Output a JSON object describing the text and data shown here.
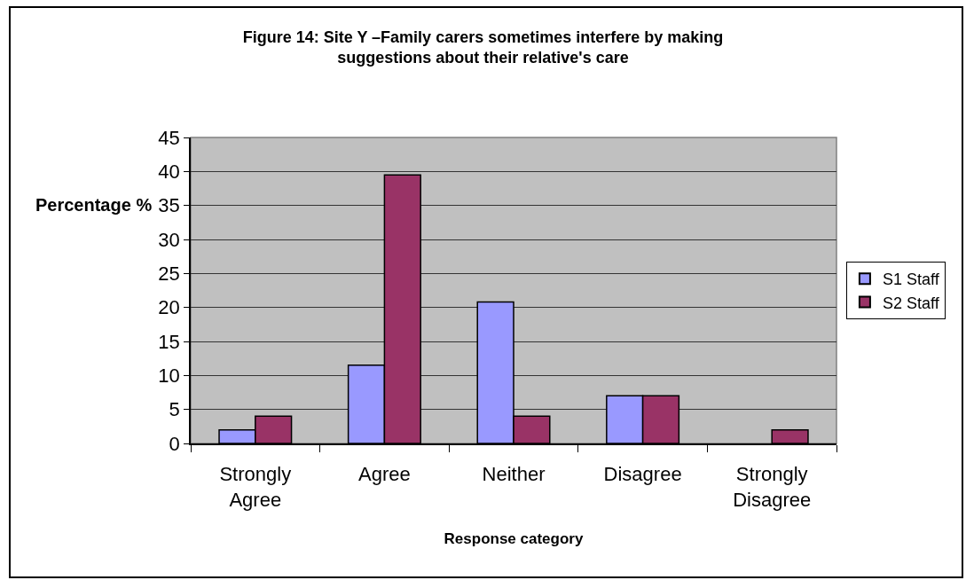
{
  "chart_data": {
    "type": "bar",
    "title": "Figure 14: Site Y –Family carers sometimes interfere by making suggestions about their relative's care",
    "xlabel": "Response category",
    "ylabel": "Percentage %",
    "categories": [
      "Strongly Agree",
      "Agree",
      "Neither",
      "Disagree",
      "Strongly Disagree"
    ],
    "series": [
      {
        "name": "S1 Staff",
        "color": "#9999ff",
        "values": [
          2,
          11.5,
          20.8,
          7,
          null
        ]
      },
      {
        "name": "S2 Staff",
        "color": "#993366",
        "values": [
          4,
          39.5,
          4,
          7,
          2
        ]
      }
    ],
    "ylim": [
      0,
      45
    ],
    "yticks": [
      0,
      5,
      10,
      15,
      20,
      25,
      30,
      35,
      40,
      45
    ],
    "grid": "y",
    "legend": "right"
  }
}
